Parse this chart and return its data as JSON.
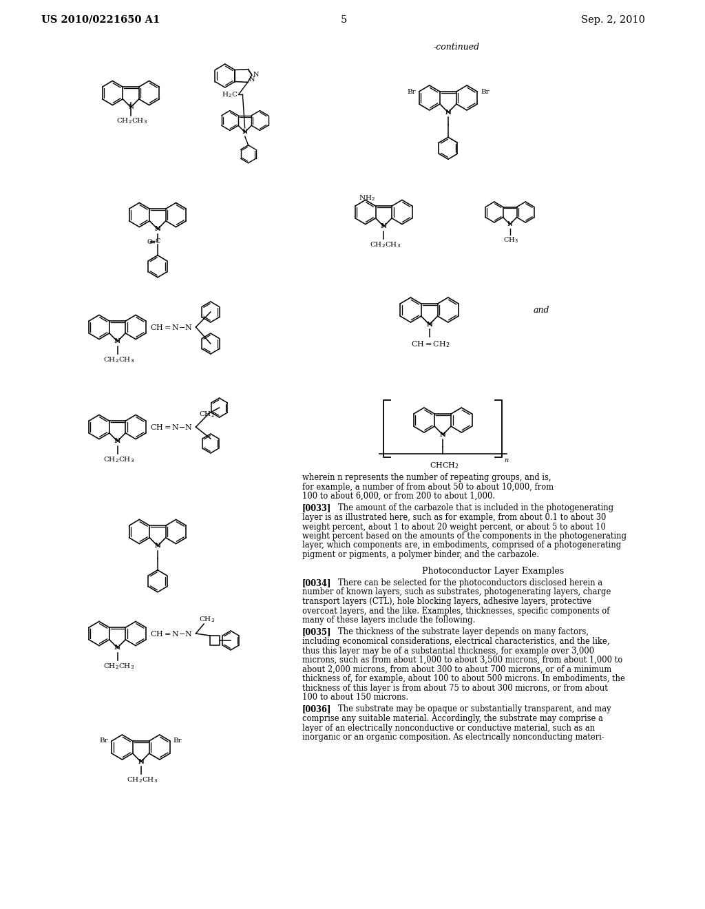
{
  "bg": "#ffffff",
  "fg": "#000000",
  "header_left": "US 2010/0221650 A1",
  "header_right": "Sep. 2, 2010",
  "page_num": "5",
  "continued": "-continued",
  "wherein": "wherein n represents the number of repeating groups, and is,\nfor example, a number of from about 50 to about 10,000, from\n100 to about 6,000, or from 200 to about 1,000.",
  "section_title": "Photoconductor Layer Examples",
  "p0033_tag": "[0033]",
  "p0033": "The amount of the carbazole that is included in the photogenerating layer is as illustrated here, such as for example, from about 0.1 to about 30 weight percent, about 1 to about 20 weight percent, or about 5 to about 10 weight percent based on the amounts of the components in the photogenerating layer, which components are, in embodiments, comprised of a photogenerating pigment or pigments, a polymer binder, and the carbazole.",
  "p0034_tag": "[0034]",
  "p0034": "There can be selected for the photoconductors disclosed herein a number of known layers, such as substrates, photogenerating layers, charge transport layers (CTL), hole blocking layers, adhesive layers, protective overcoat layers, and the like. Examples, thicknesses, specific components of many of these layers include the following.",
  "p0035_tag": "[0035]",
  "p0035": "The thickness of the substrate layer depends on many factors, including economical considerations, electrical characteristics, and the like, thus this layer may be of a substantial thickness, for example over 3,000 microns, such as from about 1,000 to about 3,500 microns, from about 1,000 to about 2,000 microns, from about 300 to about 700 microns, or of a minimum thickness of, for example, about 100 to about 500 microns. In embodiments, the thickness of this layer is from about 75 to about 300 microns, or from about 100 to about 150 microns.",
  "p0036_tag": "[0036]",
  "p0036": "The substrate may be opaque or substantially transparent, and may comprise any suitable material. Accordingly, the substrate may comprise a layer of an electrically nonconductive or conductive material, such as an inorganic or an organic composition. As electrically nonconducting materi-"
}
